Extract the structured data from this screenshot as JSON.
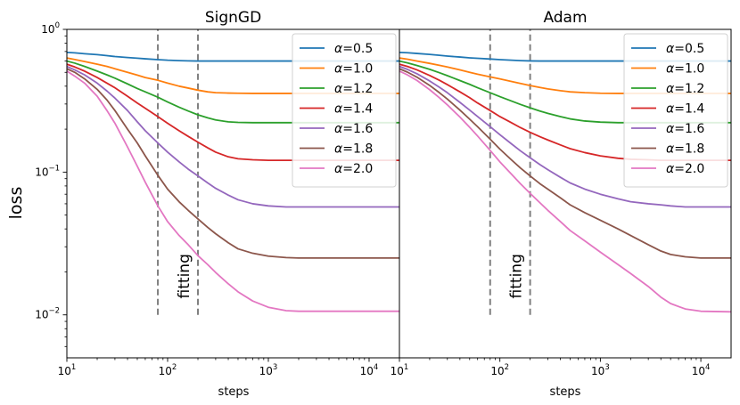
{
  "figure": {
    "ylabel": "loss",
    "xlabel": "steps"
  },
  "chart_data": [
    {
      "type": "line",
      "title": "SignGD",
      "xlabel": "steps",
      "ylabel": "loss",
      "xscale": "log",
      "yscale": "log",
      "xlim": [
        10,
        20000
      ],
      "ylim": [
        0.005,
        1.0
      ],
      "xticks": [
        {
          "value": 10,
          "base": "10",
          "exp": "1"
        },
        {
          "value": 100,
          "base": "10",
          "exp": "2"
        },
        {
          "value": 1000,
          "base": "10",
          "exp": "3"
        },
        {
          "value": 10000,
          "base": "10",
          "exp": "4"
        }
      ],
      "yticks": [
        {
          "value": 0.01,
          "base": "10",
          "exp": "−2"
        },
        {
          "value": 0.1,
          "base": "10",
          "exp": "−1"
        },
        {
          "value": 1,
          "base": "10",
          "exp": "0"
        }
      ],
      "legend_position": "top-right",
      "vlines": [
        80,
        200
      ],
      "vline_range": [
        0.01,
        1.0
      ],
      "annotation": {
        "text": "fitting",
        "x": 115,
        "y": 0.013
      },
      "x": [
        10,
        12,
        15,
        20,
        25,
        30,
        40,
        50,
        60,
        80,
        100,
        130,
        160,
        200,
        250,
        300,
        400,
        500,
        700,
        1000,
        1500,
        2000,
        3000,
        5000,
        10000,
        20000
      ],
      "series": [
        {
          "name": "α=0.5",
          "greek": "α",
          "rest": "=0.5",
          "color": "#1f77b4",
          "values": [
            0.69,
            0.685,
            0.675,
            0.665,
            0.655,
            0.645,
            0.635,
            0.628,
            0.622,
            0.614,
            0.608,
            0.604,
            0.602,
            0.6,
            0.6,
            0.6,
            0.6,
            0.6,
            0.6,
            0.6,
            0.6,
            0.6,
            0.6,
            0.6,
            0.6,
            0.6
          ]
        },
        {
          "name": "α=1.0",
          "greek": "α",
          "rest": "=1.0",
          "color": "#ff7f0e",
          "values": [
            0.63,
            0.615,
            0.595,
            0.57,
            0.55,
            0.53,
            0.5,
            0.478,
            0.46,
            0.44,
            0.42,
            0.4,
            0.388,
            0.375,
            0.365,
            0.36,
            0.358,
            0.357,
            0.356,
            0.356,
            0.356,
            0.356,
            0.356,
            0.356,
            0.356,
            0.356
          ]
        },
        {
          "name": "α=1.2",
          "greek": "α",
          "rest": "=1.2",
          "color": "#2ca02c",
          "values": [
            0.6,
            0.58,
            0.55,
            0.51,
            0.48,
            0.455,
            0.415,
            0.385,
            0.365,
            0.335,
            0.31,
            0.285,
            0.268,
            0.252,
            0.24,
            0.232,
            0.225,
            0.223,
            0.222,
            0.222,
            0.222,
            0.222,
            0.222,
            0.222,
            0.222,
            0.222
          ]
        },
        {
          "name": "α=1.4",
          "greek": "α",
          "rest": "=1.4",
          "color": "#d62728",
          "values": [
            0.57,
            0.545,
            0.51,
            0.46,
            0.42,
            0.39,
            0.34,
            0.305,
            0.28,
            0.245,
            0.22,
            0.195,
            0.178,
            0.162,
            0.148,
            0.138,
            0.128,
            0.124,
            0.122,
            0.121,
            0.121,
            0.121,
            0.121,
            0.121,
            0.121,
            0.121
          ]
        },
        {
          "name": "α=1.6",
          "greek": "α",
          "rest": "=1.6",
          "color": "#9467bd",
          "values": [
            0.55,
            0.52,
            0.48,
            0.42,
            0.37,
            0.33,
            0.27,
            0.225,
            0.195,
            0.16,
            0.138,
            0.118,
            0.105,
            0.094,
            0.084,
            0.077,
            0.069,
            0.064,
            0.06,
            0.058,
            0.057,
            0.057,
            0.057,
            0.057,
            0.057,
            0.057
          ]
        },
        {
          "name": "α=1.8",
          "greek": "α",
          "rest": "=1.8",
          "color": "#8c564b",
          "values": [
            0.53,
            0.5,
            0.45,
            0.38,
            0.32,
            0.27,
            0.2,
            0.16,
            0.13,
            0.095,
            0.076,
            0.062,
            0.054,
            0.047,
            0.041,
            0.037,
            0.032,
            0.029,
            0.027,
            0.0258,
            0.0252,
            0.025,
            0.025,
            0.025,
            0.025,
            0.025
          ]
        },
        {
          "name": "α=2.0",
          "greek": "α",
          "rest": "=2.0",
          "color": "#e377c2",
          "values": [
            0.51,
            0.47,
            0.42,
            0.34,
            0.27,
            0.22,
            0.15,
            0.11,
            0.085,
            0.058,
            0.045,
            0.036,
            0.031,
            0.026,
            0.0225,
            0.0198,
            0.0165,
            0.0145,
            0.0125,
            0.0113,
            0.0107,
            0.0106,
            0.0106,
            0.0106,
            0.0106,
            0.0106
          ]
        }
      ]
    },
    {
      "type": "line",
      "title": "Adam",
      "xlabel": "steps",
      "ylabel": "",
      "xscale": "log",
      "yscale": "log",
      "xlim": [
        10,
        20000
      ],
      "ylim": [
        0.005,
        1.0
      ],
      "xticks": [
        {
          "value": 10,
          "base": "10",
          "exp": "1"
        },
        {
          "value": 100,
          "base": "10",
          "exp": "2"
        },
        {
          "value": 1000,
          "base": "10",
          "exp": "3"
        },
        {
          "value": 10000,
          "base": "10",
          "exp": "4"
        }
      ],
      "yticks": [],
      "legend_position": "top-right",
      "vlines": [
        80,
        200
      ],
      "vline_range": [
        0.01,
        1.0
      ],
      "annotation": {
        "text": "fitting",
        "x": 115,
        "y": 0.013
      },
      "x": [
        10,
        12,
        15,
        20,
        25,
        30,
        40,
        50,
        60,
        80,
        100,
        130,
        160,
        200,
        250,
        300,
        400,
        500,
        700,
        1000,
        1500,
        2000,
        3000,
        4000,
        5000,
        7000,
        10000,
        20000
      ],
      "series": [
        {
          "name": "α=0.5",
          "greek": "α",
          "rest": "=0.5",
          "color": "#1f77b4",
          "values": [
            0.69,
            0.686,
            0.678,
            0.668,
            0.658,
            0.65,
            0.64,
            0.632,
            0.627,
            0.62,
            0.614,
            0.608,
            0.604,
            0.601,
            0.6,
            0.6,
            0.6,
            0.6,
            0.6,
            0.6,
            0.6,
            0.6,
            0.6,
            0.6,
            0.6,
            0.6,
            0.6,
            0.6
          ]
        },
        {
          "name": "α=1.0",
          "greek": "α",
          "rest": "=1.0",
          "color": "#ff7f0e",
          "values": [
            0.63,
            0.618,
            0.6,
            0.578,
            0.56,
            0.545,
            0.52,
            0.5,
            0.485,
            0.465,
            0.45,
            0.432,
            0.418,
            0.404,
            0.392,
            0.383,
            0.372,
            0.365,
            0.36,
            0.357,
            0.356,
            0.356,
            0.356,
            0.356,
            0.356,
            0.356,
            0.356,
            0.356
          ]
        },
        {
          "name": "α=1.2",
          "greek": "α",
          "rest": "=1.2",
          "color": "#2ca02c",
          "values": [
            0.6,
            0.583,
            0.558,
            0.525,
            0.497,
            0.474,
            0.438,
            0.412,
            0.39,
            0.36,
            0.338,
            0.315,
            0.298,
            0.282,
            0.268,
            0.258,
            0.245,
            0.236,
            0.228,
            0.224,
            0.222,
            0.222,
            0.222,
            0.222,
            0.222,
            0.222,
            0.222,
            0.222
          ]
        },
        {
          "name": "α=1.4",
          "greek": "α",
          "rest": "=1.4",
          "color": "#d62728",
          "values": [
            0.57,
            0.55,
            0.52,
            0.475,
            0.44,
            0.41,
            0.365,
            0.332,
            0.305,
            0.27,
            0.245,
            0.222,
            0.205,
            0.19,
            0.177,
            0.168,
            0.155,
            0.146,
            0.137,
            0.13,
            0.125,
            0.123,
            0.122,
            0.121,
            0.121,
            0.121,
            0.121,
            0.121
          ]
        },
        {
          "name": "α=1.6",
          "greek": "α",
          "rest": "=1.6",
          "color": "#9467bd",
          "values": [
            0.55,
            0.525,
            0.488,
            0.435,
            0.393,
            0.36,
            0.308,
            0.272,
            0.245,
            0.208,
            0.183,
            0.158,
            0.141,
            0.126,
            0.113,
            0.104,
            0.092,
            0.084,
            0.076,
            0.07,
            0.065,
            0.062,
            0.06,
            0.059,
            0.058,
            0.057,
            0.057,
            0.057
          ]
        },
        {
          "name": "α=1.8",
          "greek": "α",
          "rest": "=1.8",
          "color": "#8c564b",
          "values": [
            0.53,
            0.502,
            0.462,
            0.405,
            0.36,
            0.325,
            0.272,
            0.235,
            0.208,
            0.17,
            0.145,
            0.122,
            0.107,
            0.094,
            0.083,
            0.076,
            0.066,
            0.059,
            0.052,
            0.046,
            0.04,
            0.036,
            0.031,
            0.028,
            0.0265,
            0.0255,
            0.025,
            0.025
          ]
        },
        {
          "name": "α=2.0",
          "greek": "α",
          "rest": "=2.0",
          "color": "#e377c2",
          "values": [
            0.51,
            0.48,
            0.438,
            0.378,
            0.332,
            0.296,
            0.243,
            0.206,
            0.179,
            0.142,
            0.118,
            0.097,
            0.083,
            0.071,
            0.061,
            0.054,
            0.045,
            0.039,
            0.033,
            0.0275,
            0.0225,
            0.0195,
            0.0158,
            0.0133,
            0.012,
            0.011,
            0.0106,
            0.0105
          ]
        }
      ]
    }
  ]
}
